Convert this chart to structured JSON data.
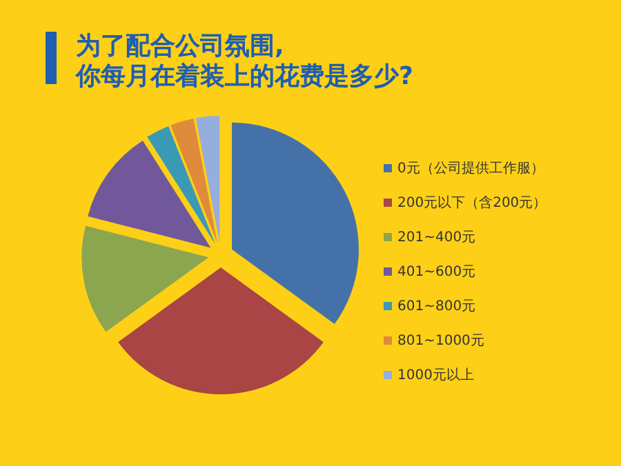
{
  "chart_data": {
    "type": "pie",
    "title": "为了配合公司氛围,\n你每月在着装上的花费是多少?",
    "categories": [
      "0元（公司提供工作服）",
      "200元以下（含200元）",
      "201~400元",
      "401~600元",
      "601~800元",
      "801~1000元",
      "1000元以上"
    ],
    "values": [
      35,
      30,
      14,
      12,
      3,
      3,
      3
    ],
    "colors": [
      "#4472a8",
      "#a94544",
      "#8ca64f",
      "#71589a",
      "#3a9ab5",
      "#e08a3b",
      "#95aede"
    ],
    "legend": "right"
  }
}
